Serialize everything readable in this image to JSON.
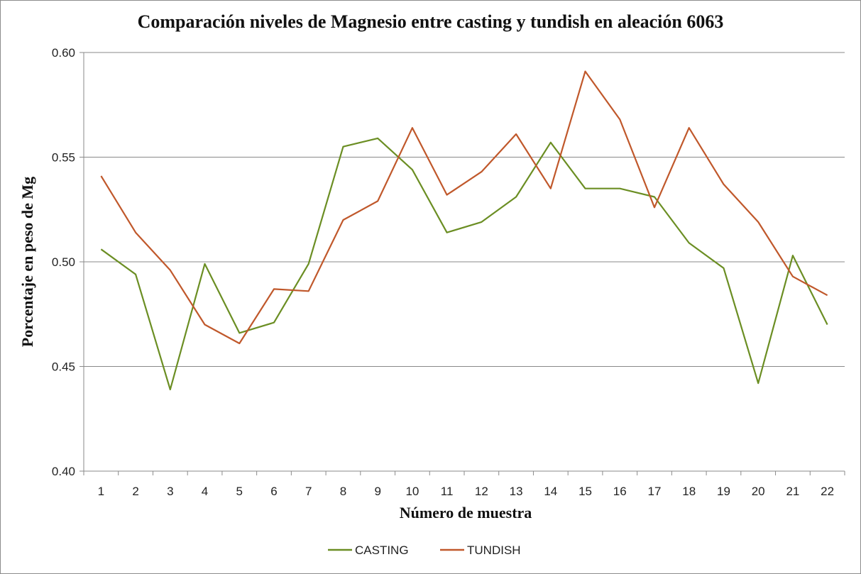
{
  "chart_data": {
    "type": "line",
    "title": "Comparación niveles de Magnesio entre casting y tundish  en aleación 6063",
    "xlabel": "Número de muestra",
    "ylabel": "Porcentaje en  peso de  Mg",
    "categories": [
      "1",
      "2",
      "3",
      "4",
      "5",
      "6",
      "7",
      "8",
      "9",
      "10",
      "11",
      "12",
      "13",
      "14",
      "15",
      "16",
      "17",
      "18",
      "19",
      "20",
      "21",
      "22"
    ],
    "ylim": [
      0.4,
      0.6
    ],
    "yticks": [
      "0.40",
      "0.45",
      "0.50",
      "0.55",
      "0.60"
    ],
    "grid": "horizontal",
    "legend_position": "bottom",
    "series": [
      {
        "name": "CASTING",
        "color": "#6b8e23",
        "values": [
          0.506,
          0.494,
          0.439,
          0.499,
          0.466,
          0.471,
          0.499,
          0.555,
          0.559,
          0.544,
          0.514,
          0.519,
          0.531,
          0.557,
          0.535,
          0.535,
          0.531,
          0.509,
          0.497,
          0.442,
          0.503,
          0.47
        ]
      },
      {
        "name": "TUNDISH",
        "color": "#c0582b",
        "values": [
          0.541,
          0.514,
          0.496,
          0.47,
          0.461,
          0.487,
          0.486,
          0.52,
          0.529,
          0.564,
          0.532,
          0.543,
          0.561,
          0.535,
          0.591,
          0.568,
          0.526,
          0.564,
          0.537,
          0.519,
          0.493,
          0.484
        ]
      }
    ]
  }
}
